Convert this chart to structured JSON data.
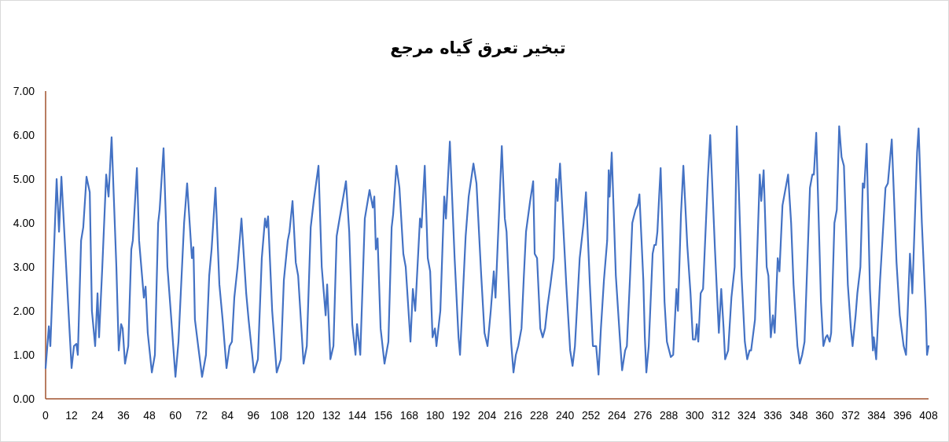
{
  "chart_data": {
    "type": "line",
    "title": "تبخیر تعرق گیاه مرجع",
    "x": [
      0,
      1.5,
      2.2,
      5.1,
      6.2,
      7.3,
      10.9,
      12.0,
      13.1,
      14.2,
      14.9,
      16.4,
      17.4,
      18.9,
      20.4,
      21.4,
      22.9,
      24.0,
      24.7,
      26.2,
      28.0,
      29.1,
      30.5,
      32.7,
      33.8,
      34.9,
      35.6,
      36.7,
      38.2,
      39.6,
      40.3,
      42.2,
      43.2,
      45.4,
      46.2,
      47.2,
      49.1,
      50.5,
      52.0,
      52.7,
      54.5,
      56.3,
      57.8,
      60.0,
      61.4,
      64.0,
      65.4,
      67.6,
      68.3,
      69.0,
      70.5,
      72.3,
      74.1,
      75.6,
      76.7,
      78.5,
      80.3,
      81.8,
      83.6,
      85.0,
      86.1,
      87.2,
      88.7,
      90.5,
      92.7,
      93.8,
      96.3,
      98.1,
      99.9,
      101.4,
      102.1,
      102.8,
      104.7,
      106.8,
      108.7,
      110.1,
      111.9,
      112.7,
      114.1,
      115.6,
      116.7,
      119.2,
      120.7,
      122.5,
      123.9,
      126.1,
      127.6,
      129.4,
      130.1,
      131.6,
      133.0,
      134.5,
      135.5,
      138.8,
      140.3,
      141.7,
      143.2,
      143.9,
      145.4,
      147.5,
      149.7,
      151.2,
      151.9,
      152.6,
      153.4,
      154.8,
      156.6,
      158.4,
      159.9,
      160.6,
      162.1,
      163.5,
      165.3,
      166.4,
      168.6,
      169.7,
      170.8,
      173.0,
      173.7,
      175.2,
      176.6,
      177.7,
      178.8,
      179.9,
      180.6,
      182.4,
      184.2,
      185.0,
      186.8,
      189.0,
      190.8,
      191.5,
      194.1,
      195.5,
      197.7,
      199.1,
      201.3,
      202.8,
      204.2,
      205.7,
      207.1,
      207.9,
      210.8,
      212.2,
      213.0,
      215.1,
      216.2,
      217.3,
      218.4,
      219.9,
      221.0,
      222.0,
      223.9,
      225.3,
      226.0,
      227.1,
      228.6,
      229.7,
      230.8,
      231.9,
      233.3,
      234.8,
      235.9,
      236.6,
      237.7,
      240.6,
      242.4,
      243.5,
      244.6,
      246.8,
      248.6,
      249.7,
      251.5,
      252.9,
      254.4,
      255.5,
      256.6,
      258.0,
      259.5,
      260.2,
      260.6,
      261.6,
      263.5,
      265.6,
      266.4,
      267.8,
      268.6,
      270.0,
      271.1,
      272.6,
      273.6,
      274.4,
      276.2,
      276.9,
      277.6,
      278.7,
      280.5,
      281.3,
      282.0,
      282.7,
      283.5,
      284.2,
      286.0,
      287.1,
      288.9,
      290.0,
      291.5,
      292.2,
      293.6,
      294.7,
      296.5,
      298.0,
      299.1,
      300.2,
      300.9,
      301.6,
      302.7,
      303.8,
      306.0,
      307.1,
      309.3,
      311.1,
      312.2,
      313.3,
      314.0,
      315.4,
      316.9,
      318.4,
      319.4,
      321.6,
      323.1,
      324.2,
      325.3,
      326.0,
      327.8,
      330.0,
      330.7,
      331.8,
      333.2,
      334.0,
      335.1,
      336.1,
      336.9,
      338.3,
      339.1,
      340.5,
      343.1,
      344.5,
      345.6,
      347.4,
      348.5,
      349.6,
      350.7,
      353.2,
      354.3,
      355.0,
      356.1,
      358.3,
      359.4,
      360.5,
      361.2,
      362.3,
      363.0,
      364.5,
      365.6,
      366.7,
      367.8,
      368.9,
      370.7,
      372.1,
      372.9,
      374.3,
      375.1,
      376.5,
      377.6,
      378.3,
      379.4,
      380.9,
      382.3,
      382.7,
      383.8,
      385.6,
      388.1,
      389.2,
      391.0,
      393.2,
      394.7,
      396.5,
      397.6,
      399.4,
      400.5,
      402.7,
      403.4,
      404.9,
      406.7,
      407.3,
      408
    ],
    "series": [
      {
        "color": "#4472c4",
        "values": [
          0.7,
          1.65,
          1.2,
          5.0,
          3.8,
          5.05,
          1.7,
          0.7,
          1.2,
          1.25,
          1.0,
          3.6,
          3.9,
          5.05,
          4.7,
          2.0,
          1.2,
          2.4,
          1.4,
          3.0,
          5.1,
          4.6,
          5.95,
          3.0,
          1.1,
          1.7,
          1.6,
          0.8,
          1.2,
          3.4,
          3.6,
          5.25,
          3.6,
          2.3,
          2.55,
          1.5,
          0.6,
          1.0,
          4.0,
          4.3,
          5.7,
          3.0,
          2.0,
          0.5,
          1.3,
          4.0,
          4.9,
          3.2,
          3.45,
          1.8,
          1.2,
          0.5,
          1.0,
          2.8,
          3.4,
          4.8,
          2.6,
          1.8,
          0.7,
          1.2,
          1.3,
          2.3,
          3.0,
          4.1,
          2.4,
          1.8,
          0.6,
          0.9,
          3.2,
          4.1,
          3.9,
          4.15,
          2.0,
          0.6,
          0.9,
          2.7,
          3.6,
          3.8,
          4.5,
          3.1,
          2.8,
          0.8,
          1.2,
          3.9,
          4.5,
          5.3,
          3.0,
          1.9,
          2.6,
          0.9,
          1.2,
          3.7,
          4.0,
          4.95,
          3.8,
          1.7,
          1.0,
          1.7,
          1.0,
          4.1,
          4.75,
          4.35,
          4.6,
          3.4,
          3.65,
          1.6,
          0.8,
          1.3,
          3.9,
          4.2,
          5.3,
          4.8,
          3.3,
          3.0,
          1.3,
          2.5,
          2.0,
          4.1,
          3.9,
          5.3,
          3.2,
          2.9,
          1.4,
          1.6,
          1.2,
          2.0,
          4.6,
          4.1,
          5.85,
          3.2,
          1.4,
          1.0,
          3.7,
          4.6,
          5.35,
          4.9,
          2.8,
          1.5,
          1.2,
          2.0,
          2.9,
          2.3,
          5.75,
          4.1,
          3.8,
          1.3,
          0.6,
          1.0,
          1.2,
          1.6,
          2.8,
          3.8,
          4.5,
          4.95,
          3.3,
          3.2,
          1.6,
          1.4,
          1.6,
          2.1,
          2.6,
          3.2,
          5.0,
          4.5,
          5.35,
          2.6,
          1.1,
          0.75,
          1.2,
          3.2,
          4.0,
          4.7,
          2.6,
          1.2,
          1.2,
          0.55,
          1.6,
          2.7,
          3.6,
          5.2,
          4.6,
          5.6,
          2.8,
          1.2,
          0.65,
          1.1,
          1.2,
          2.7,
          4.0,
          4.3,
          4.4,
          4.65,
          2.7,
          1.4,
          0.6,
          1.2,
          3.3,
          3.5,
          3.5,
          3.8,
          4.6,
          5.25,
          2.2,
          1.3,
          0.95,
          1.0,
          2.5,
          2.0,
          4.2,
          5.3,
          3.5,
          2.4,
          1.35,
          1.35,
          1.7,
          1.3,
          2.4,
          2.5,
          5.0,
          6.0,
          3.4,
          1.5,
          2.5,
          1.6,
          0.9,
          1.1,
          2.3,
          3.0,
          6.2,
          2.8,
          1.3,
          0.9,
          1.1,
          1.1,
          1.8,
          5.1,
          4.5,
          5.2,
          3.0,
          2.8,
          1.4,
          1.9,
          1.5,
          3.2,
          2.9,
          4.4,
          5.1,
          4.0,
          2.6,
          1.2,
          0.8,
          1.0,
          1.3,
          4.8,
          5.1,
          5.1,
          6.05,
          2.2,
          1.2,
          1.4,
          1.45,
          1.3,
          1.5,
          4.0,
          4.3,
          6.2,
          5.5,
          5.3,
          2.6,
          1.6,
          1.2,
          1.9,
          2.4,
          3.0,
          4.9,
          4.8,
          5.8,
          2.5,
          1.1,
          1.4,
          0.9,
          2.7,
          4.8,
          4.9,
          5.9,
          3.1,
          1.9,
          1.2,
          1.0,
          3.3,
          2.4,
          5.6,
          6.15,
          4.0,
          2.0,
          1.0,
          1.2
        ]
      }
    ],
    "xlim": [
      0,
      408
    ],
    "xticks": [
      0,
      12,
      24,
      36,
      48,
      60,
      72,
      84,
      96,
      108,
      120,
      132,
      144,
      156,
      168,
      180,
      192,
      204,
      216,
      228,
      240,
      252,
      264,
      276,
      288,
      300,
      312,
      324,
      336,
      348,
      360,
      372,
      384,
      396,
      408
    ],
    "ylim": [
      0,
      7
    ],
    "yticks": [
      {
        "value": 0,
        "label": "0.00"
      },
      {
        "value": 1,
        "label": "1.00"
      },
      {
        "value": 2,
        "label": "2.00"
      },
      {
        "value": 3,
        "label": "3.00"
      },
      {
        "value": 4,
        "label": "4.00"
      },
      {
        "value": 5,
        "label": "5.00"
      },
      {
        "value": 6,
        "label": "6.00"
      },
      {
        "value": 7,
        "label": "7.00"
      }
    ],
    "marker": "none",
    "line_style": "solid"
  }
}
